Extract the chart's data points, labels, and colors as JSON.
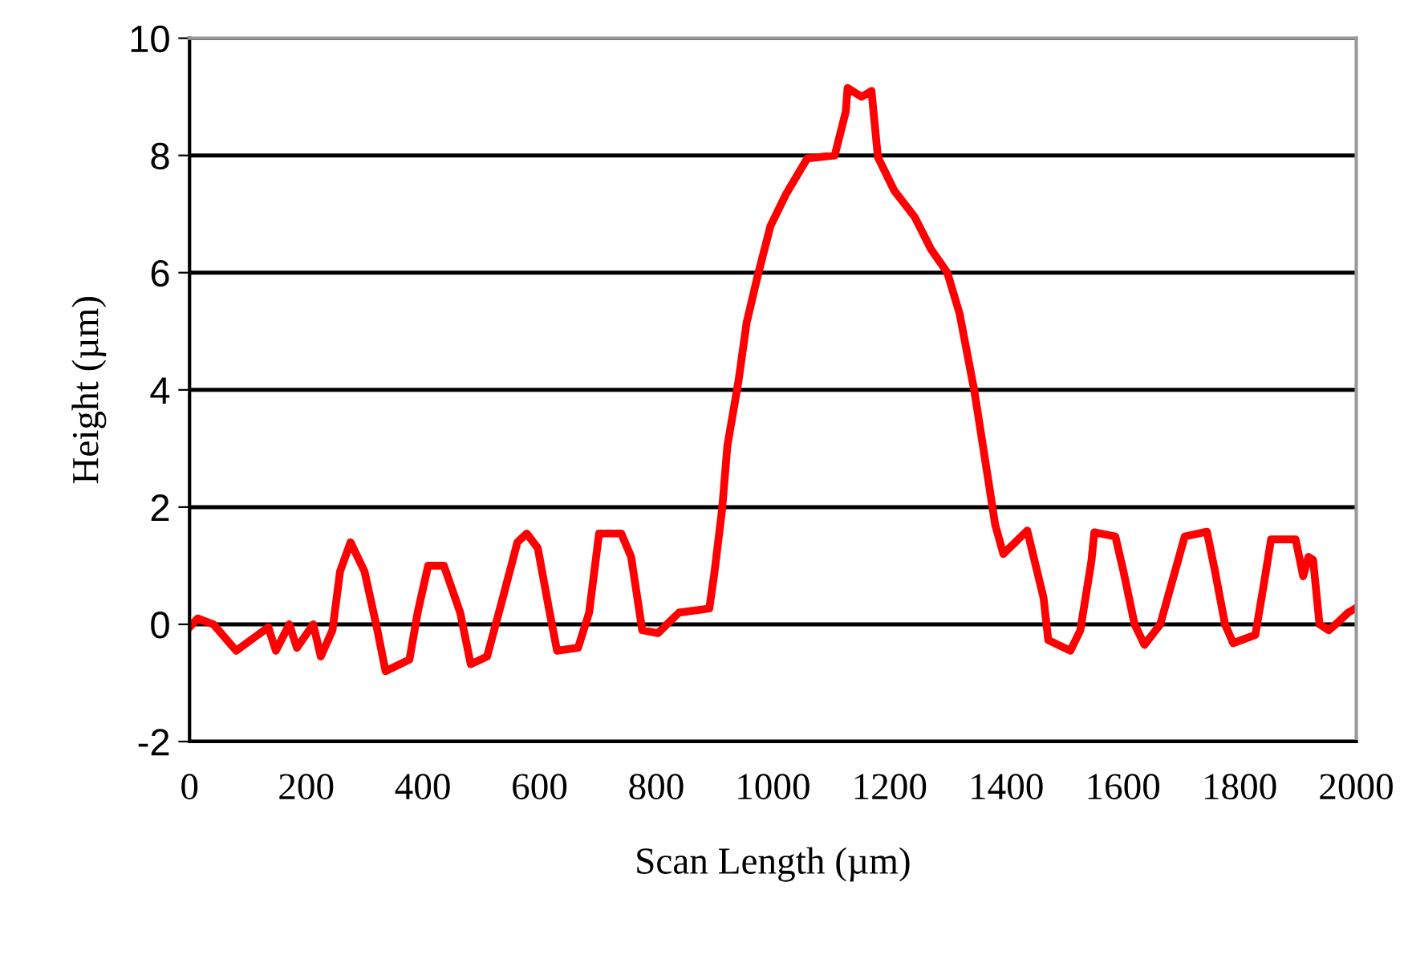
{
  "chart_data": {
    "type": "line",
    "xlabel": "Scan Length (µm)",
    "ylabel": "Height (µm)",
    "xlim": [
      0,
      2000
    ],
    "xticks": [
      0,
      200,
      400,
      600,
      800,
      1000,
      1200,
      1400,
      1600,
      1800,
      2000
    ],
    "ylim": [
      -2,
      10
    ],
    "yticks": [
      -2,
      0,
      2,
      4,
      6,
      8,
      10
    ],
    "grid": "y",
    "marker": "none",
    "line_style": "solid",
    "series": [
      {
        "color": "#ff0000",
        "x": [
          0,
          14,
          41,
          80,
          135,
          148,
          171,
          184,
          212,
          225,
          245,
          258,
          276,
          300,
          322,
          336,
          377,
          391,
          409,
          436,
          464,
          482,
          510,
          537,
          562,
          578,
          597,
          616,
          630,
          666,
          685,
          702,
          740,
          757,
          776,
          803,
          839,
          891,
          900,
          913,
          922,
          941,
          955,
          974,
          996,
          1023,
          1059,
          1106,
          1125,
          1128,
          1152,
          1169,
          1180,
          1208,
          1243,
          1271,
          1299,
          1320,
          1345,
          1367,
          1381,
          1395,
          1436,
          1464,
          1472,
          1510,
          1527,
          1546,
          1551,
          1587,
          1601,
          1620,
          1637,
          1664,
          1692,
          1706,
          1744,
          1758,
          1775,
          1789,
          1827,
          1841,
          1854,
          1896,
          1909,
          1918,
          1926,
          1937,
          1953,
          1967,
          1986,
          2000
        ],
        "values": [
          -0.05,
          0.1,
          0.0,
          -0.45,
          -0.05,
          -0.45,
          0.0,
          -0.4,
          0.0,
          -0.55,
          -0.1,
          0.9,
          1.4,
          0.9,
          -0.1,
          -0.8,
          -0.6,
          0.2,
          1.0,
          1.0,
          0.2,
          -0.68,
          -0.55,
          0.45,
          1.4,
          1.55,
          1.3,
          0.27,
          -0.45,
          -0.4,
          0.2,
          1.55,
          1.55,
          1.15,
          -0.1,
          -0.15,
          0.2,
          0.27,
          0.9,
          1.97,
          3.05,
          4.15,
          5.15,
          5.95,
          6.8,
          7.35,
          7.95,
          8.0,
          8.75,
          9.15,
          9.0,
          9.1,
          7.97,
          7.4,
          6.95,
          6.4,
          6.0,
          5.3,
          4.0,
          2.6,
          1.7,
          1.2,
          1.6,
          0.45,
          -0.27,
          -0.45,
          -0.1,
          1.08,
          1.57,
          1.5,
          0.9,
          0.0,
          -0.35,
          0.0,
          1.0,
          1.5,
          1.58,
          0.9,
          0.0,
          -0.32,
          -0.18,
          0.65,
          1.45,
          1.45,
          0.82,
          1.15,
          1.1,
          0.0,
          -0.1,
          0.02,
          0.2,
          0.28
        ]
      }
    ]
  }
}
